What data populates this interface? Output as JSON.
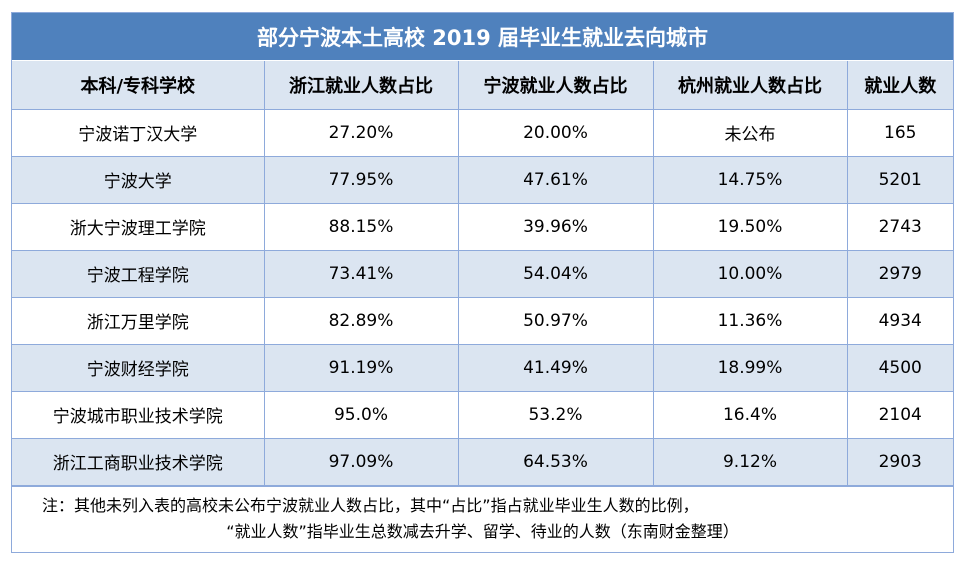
{
  "title": "部分宁波本土高校 2019 届毕业生就业去向城市",
  "headers": [
    "本科/专科学校",
    "浙江就业人数占比",
    "宁波就业人数占比",
    "杭州就业人数占比",
    "就业人数"
  ],
  "rows": [
    [
      "宁波诺丁汉大学",
      "27.20%",
      "20.00%",
      "未公布",
      "165"
    ],
    [
      "宁波大学",
      "77.95%",
      "47.61%",
      "14.75%",
      "5201"
    ],
    [
      "浙大宁波理工学院",
      "88.15%",
      "39.96%",
      "19.50%",
      "2743"
    ],
    [
      "宁波工程学院",
      "73.41%",
      "54.04%",
      "10.00%",
      "2979"
    ],
    [
      "浙江万里学院",
      "82.89%",
      "50.97%",
      "11.36%",
      "4934"
    ],
    [
      "宁波财经学院",
      "91.19%",
      "41.49%",
      "18.99%",
      "4500"
    ],
    [
      "宁波城市职业技术学院",
      "95.0%",
      "53.2%",
      "16.4%",
      "2104"
    ],
    [
      "浙江工商职业技术学院",
      "97.09%",
      "64.53%",
      "9.12%",
      "2903"
    ]
  ],
  "note": {
    "line1": "注：其他未列入表的高校未公布宁波就业人数占比，其中“占比”指占就业毕业生人数的比例，",
    "line2": "“就业人数”指毕业生总数减去升学、留学、待业的人数（东南财金整理）"
  },
  "colors": {
    "header_bar": "#4f81bd",
    "band": "#dbe5f1",
    "grid": "#8eaadb"
  }
}
